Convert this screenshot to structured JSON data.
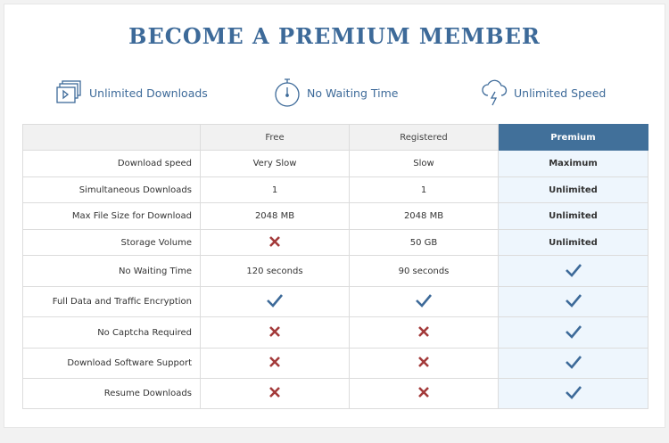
{
  "title": "BECOME A PREMIUM MEMBER",
  "features": [
    {
      "icon": "video-stack-icon",
      "label": "Unlimited Downloads"
    },
    {
      "icon": "stopwatch-icon",
      "label": "No Waiting Time"
    },
    {
      "icon": "cloud-lightning-icon",
      "label": "Unlimited Speed"
    }
  ],
  "colors": {
    "accent": "#41709a",
    "check": "#3d6a99",
    "cross": "#a33a3a",
    "premium_bg": "#eef6fd"
  },
  "table": {
    "headers": [
      "",
      "Free",
      "Registered",
      "Premium"
    ],
    "rows": [
      {
        "label": "Download speed",
        "cells": [
          "Very Slow",
          "Slow",
          "Maximum"
        ]
      },
      {
        "label": "Simultaneous Downloads",
        "cells": [
          "1",
          "1",
          "Unlimited"
        ]
      },
      {
        "label": "Max File Size for Download",
        "cells": [
          "2048 MB",
          "2048 MB",
          "Unlimited"
        ]
      },
      {
        "label": "Storage Volume",
        "cells": [
          {
            "mark": "cross"
          },
          "50 GB",
          "Unlimited"
        ]
      },
      {
        "label": "No Waiting Time",
        "cells": [
          "120 seconds",
          "90 seconds",
          {
            "mark": "check"
          }
        ]
      },
      {
        "label": "Full Data and Traffic Encryption",
        "cells": [
          {
            "mark": "check"
          },
          {
            "mark": "check"
          },
          {
            "mark": "check"
          }
        ]
      },
      {
        "label": "No Captcha Required",
        "cells": [
          {
            "mark": "cross"
          },
          {
            "mark": "cross"
          },
          {
            "mark": "check"
          }
        ]
      },
      {
        "label": "Download Software Support",
        "cells": [
          {
            "mark": "cross"
          },
          {
            "mark": "cross"
          },
          {
            "mark": "check"
          }
        ]
      },
      {
        "label": "Resume Downloads",
        "cells": [
          {
            "mark": "cross"
          },
          {
            "mark": "cross"
          },
          {
            "mark": "check"
          }
        ]
      }
    ]
  }
}
